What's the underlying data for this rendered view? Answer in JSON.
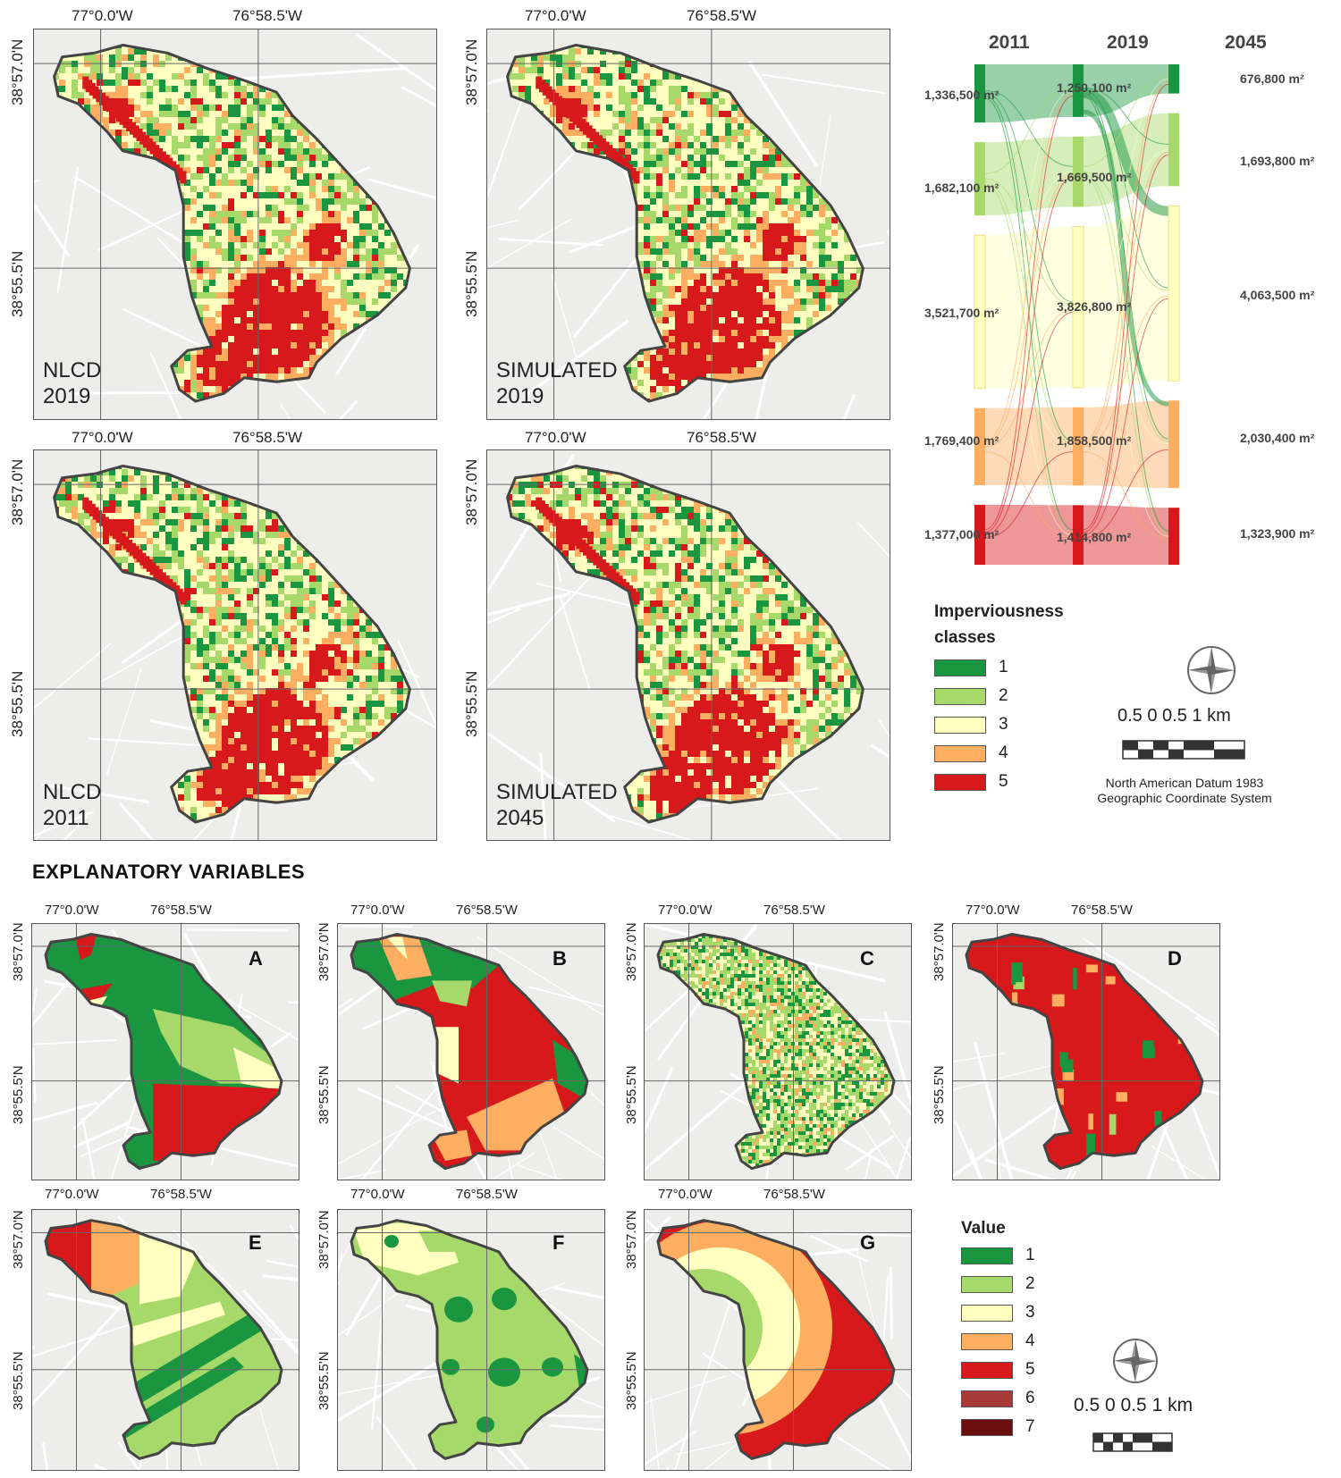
{
  "coords": {
    "lon_left": "77°0.0'W",
    "lon_right": "76°58.5'W",
    "lat_top": "38°57.0'N",
    "lat_bottom": "38°55.5'N"
  },
  "maps": {
    "nlcd2019": [
      "NLCD",
      "2019"
    ],
    "sim2019": [
      "SIMULATED",
      "2019"
    ],
    "nlcd2011": [
      "NLCD",
      "2011"
    ],
    "sim2045": [
      "SIMULATED",
      "2045"
    ]
  },
  "chart_data": {
    "type": "sankey",
    "years": [
      "2011",
      "2019",
      "2045"
    ],
    "classes": [
      1,
      2,
      3,
      4,
      5
    ],
    "values": {
      "2011": [
        "1,336,500 m²",
        "1,682,100 m²",
        "3,521,700 m²",
        "1,769,400 m²",
        "1,377,000 m²"
      ],
      "2019": [
        "1,250,100 m²",
        "1,669,500 m²",
        "3,826,800 m²",
        "1,858,500 m²",
        "1,414,800 m²"
      ],
      "2045": [
        "676,800 m²",
        "1,693,800 m²",
        "4,063,500 m²",
        "2,030,400 m²",
        "1,323,900 m²"
      ]
    },
    "area_m2": {
      "2011": [
        1336500,
        1682100,
        3521700,
        1769400,
        1377000
      ],
      "2019": [
        1250100,
        1669500,
        3826800,
        1858500,
        1414800
      ],
      "2045": [
        676800,
        1693800,
        4063500,
        2030400,
        1323900
      ]
    }
  },
  "legend_imperv": {
    "title_line1": "Imperviousness",
    "title_line2": "classes",
    "items": [
      "1",
      "2",
      "3",
      "4",
      "5"
    ],
    "colors": [
      "#1a9641",
      "#a6d96a",
      "#ffffbf",
      "#fdae61",
      "#d7191c"
    ]
  },
  "scale_top": {
    "text": "0.5    0    0.5    1 km",
    "datum_line1": "North American Datum 1983",
    "datum_line2": "Geographic Coordinate System"
  },
  "section_title": "EXPLANATORY VARIABLES",
  "panels": [
    "A",
    "B",
    "C",
    "D",
    "E",
    "F",
    "G"
  ],
  "legend_value": {
    "title": "Value",
    "items": [
      "1",
      "2",
      "3",
      "4",
      "5",
      "6",
      "7"
    ],
    "colors": [
      "#1a9641",
      "#a6d96a",
      "#ffffbf",
      "#fdae61",
      "#d7191c",
      "#a83a38",
      "#6b0e10"
    ]
  },
  "scale_bottom": {
    "text": "0.5 0 0.5 1 km"
  },
  "colors": {
    "c1": "#1a9641",
    "c2": "#a6d96a",
    "c3": "#ffffbf",
    "c4": "#fdae61",
    "c5": "#d7191c"
  }
}
